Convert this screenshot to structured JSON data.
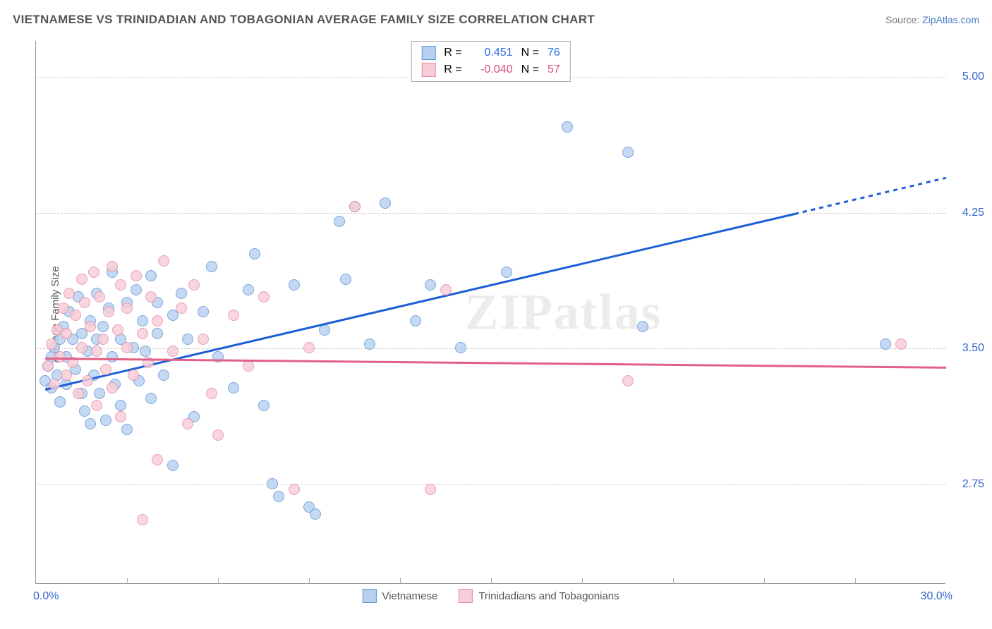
{
  "title": "VIETNAMESE VS TRINIDADIAN AND TOBAGONIAN AVERAGE FAMILY SIZE CORRELATION CHART",
  "source_prefix": "Source: ",
  "source_link": "ZipAtlas.com",
  "ylabel": "Average Family Size",
  "watermark": "ZIPatlas",
  "chart": {
    "type": "scatter",
    "xlim": [
      0,
      30
    ],
    "ylim": [
      2.2,
      5.2
    ],
    "x_tick_step": 3.0,
    "y_ticks": [
      2.75,
      3.5,
      4.25,
      5.0
    ],
    "y_tick_labels": [
      "2.75",
      "3.50",
      "4.25",
      "5.00"
    ],
    "x_axis_left_label": "0.0%",
    "x_axis_right_label": "30.0%",
    "grid_color": "#cccccc",
    "background_color": "#ffffff",
    "point_radius": 8,
    "series": [
      {
        "name": "Vietnamese",
        "fill_color": "#b9d1f0",
        "stroke_color": "#5e94d6",
        "R_label": "R =",
        "R_value": "0.451",
        "N_label": "N =",
        "N_value": "76",
        "R_color": "#2a6be0",
        "trend": {
          "x1": 0.3,
          "y1": 3.28,
          "x2": 25.0,
          "y2": 4.25,
          "extend_x": 30.0,
          "extend_y": 4.45,
          "color": "#1d5fd6",
          "width": 2.5
        },
        "points": [
          [
            0.3,
            3.32
          ],
          [
            0.4,
            3.4
          ],
          [
            0.5,
            3.45
          ],
          [
            0.5,
            3.28
          ],
          [
            0.6,
            3.5
          ],
          [
            0.7,
            3.35
          ],
          [
            0.8,
            3.55
          ],
          [
            0.8,
            3.2
          ],
          [
            0.9,
            3.62
          ],
          [
            1.0,
            3.45
          ],
          [
            1.0,
            3.3
          ],
          [
            1.1,
            3.7
          ],
          [
            1.2,
            3.55
          ],
          [
            1.3,
            3.38
          ],
          [
            1.4,
            3.78
          ],
          [
            1.5,
            3.25
          ],
          [
            1.5,
            3.58
          ],
          [
            1.6,
            3.15
          ],
          [
            1.7,
            3.48
          ],
          [
            1.8,
            3.65
          ],
          [
            1.8,
            3.08
          ],
          [
            1.9,
            3.35
          ],
          [
            2.0,
            3.55
          ],
          [
            2.0,
            3.8
          ],
          [
            2.1,
            3.25
          ],
          [
            2.2,
            3.62
          ],
          [
            2.3,
            3.1
          ],
          [
            2.4,
            3.72
          ],
          [
            2.5,
            3.45
          ],
          [
            2.5,
            3.92
          ],
          [
            2.6,
            3.3
          ],
          [
            2.8,
            3.55
          ],
          [
            2.8,
            3.18
          ],
          [
            3.0,
            3.75
          ],
          [
            3.0,
            3.05
          ],
          [
            3.2,
            3.5
          ],
          [
            3.3,
            3.82
          ],
          [
            3.4,
            3.32
          ],
          [
            3.5,
            3.65
          ],
          [
            3.6,
            3.48
          ],
          [
            3.8,
            3.9
          ],
          [
            3.8,
            3.22
          ],
          [
            4.0,
            3.58
          ],
          [
            4.0,
            3.75
          ],
          [
            4.2,
            3.35
          ],
          [
            4.5,
            3.68
          ],
          [
            4.5,
            2.85
          ],
          [
            4.8,
            3.8
          ],
          [
            5.0,
            3.55
          ],
          [
            5.2,
            3.12
          ],
          [
            5.5,
            3.7
          ],
          [
            5.8,
            3.95
          ],
          [
            6.0,
            3.45
          ],
          [
            6.5,
            3.28
          ],
          [
            7.0,
            3.82
          ],
          [
            7.2,
            4.02
          ],
          [
            7.5,
            3.18
          ],
          [
            8.0,
            2.68
          ],
          [
            8.5,
            3.85
          ],
          [
            9.0,
            2.62
          ],
          [
            9.2,
            2.58
          ],
          [
            9.5,
            3.6
          ],
          [
            10.0,
            4.2
          ],
          [
            10.2,
            3.88
          ],
          [
            10.5,
            4.28
          ],
          [
            11.0,
            3.52
          ],
          [
            11.5,
            4.3
          ],
          [
            12.5,
            3.65
          ],
          [
            13.0,
            3.85
          ],
          [
            14.0,
            3.5
          ],
          [
            15.5,
            3.92
          ],
          [
            17.5,
            4.72
          ],
          [
            19.5,
            4.58
          ],
          [
            20.0,
            3.62
          ],
          [
            28.0,
            3.52
          ],
          [
            7.8,
            2.75
          ]
        ]
      },
      {
        "name": "Trinidadians and Tobagonians",
        "fill_color": "#f8cdd8",
        "stroke_color": "#e68ba5",
        "R_label": "R =",
        "R_value": "-0.040",
        "N_label": "N =",
        "N_value": "57",
        "R_color": "#d94f7a",
        "trend": {
          "x1": 0.3,
          "y1": 3.45,
          "x2": 30.0,
          "y2": 3.4,
          "color": "#e26088",
          "width": 2.5
        },
        "points": [
          [
            0.4,
            3.4
          ],
          [
            0.5,
            3.52
          ],
          [
            0.6,
            3.3
          ],
          [
            0.7,
            3.6
          ],
          [
            0.8,
            3.45
          ],
          [
            0.9,
            3.72
          ],
          [
            1.0,
            3.35
          ],
          [
            1.0,
            3.58
          ],
          [
            1.1,
            3.8
          ],
          [
            1.2,
            3.42
          ],
          [
            1.3,
            3.68
          ],
          [
            1.4,
            3.25
          ],
          [
            1.5,
            3.88
          ],
          [
            1.5,
            3.5
          ],
          [
            1.6,
            3.75
          ],
          [
            1.7,
            3.32
          ],
          [
            1.8,
            3.62
          ],
          [
            1.9,
            3.92
          ],
          [
            2.0,
            3.48
          ],
          [
            2.0,
            3.18
          ],
          [
            2.1,
            3.78
          ],
          [
            2.2,
            3.55
          ],
          [
            2.3,
            3.38
          ],
          [
            2.4,
            3.7
          ],
          [
            2.5,
            3.95
          ],
          [
            2.5,
            3.28
          ],
          [
            2.7,
            3.6
          ],
          [
            2.8,
            3.85
          ],
          [
            2.8,
            3.12
          ],
          [
            3.0,
            3.5
          ],
          [
            3.0,
            3.72
          ],
          [
            3.2,
            3.35
          ],
          [
            3.3,
            3.9
          ],
          [
            3.5,
            3.58
          ],
          [
            3.5,
            2.55
          ],
          [
            3.7,
            3.42
          ],
          [
            3.8,
            3.78
          ],
          [
            4.0,
            3.65
          ],
          [
            4.0,
            2.88
          ],
          [
            4.2,
            3.98
          ],
          [
            4.5,
            3.48
          ],
          [
            4.8,
            3.72
          ],
          [
            5.0,
            3.08
          ],
          [
            5.2,
            3.85
          ],
          [
            5.5,
            3.55
          ],
          [
            5.8,
            3.25
          ],
          [
            6.0,
            3.02
          ],
          [
            6.5,
            3.68
          ],
          [
            7.0,
            3.4
          ],
          [
            7.5,
            3.78
          ],
          [
            8.5,
            2.72
          ],
          [
            9.0,
            3.5
          ],
          [
            10.5,
            4.28
          ],
          [
            13.0,
            2.72
          ],
          [
            13.5,
            3.82
          ],
          [
            19.5,
            3.32
          ],
          [
            28.5,
            3.52
          ]
        ]
      }
    ]
  }
}
